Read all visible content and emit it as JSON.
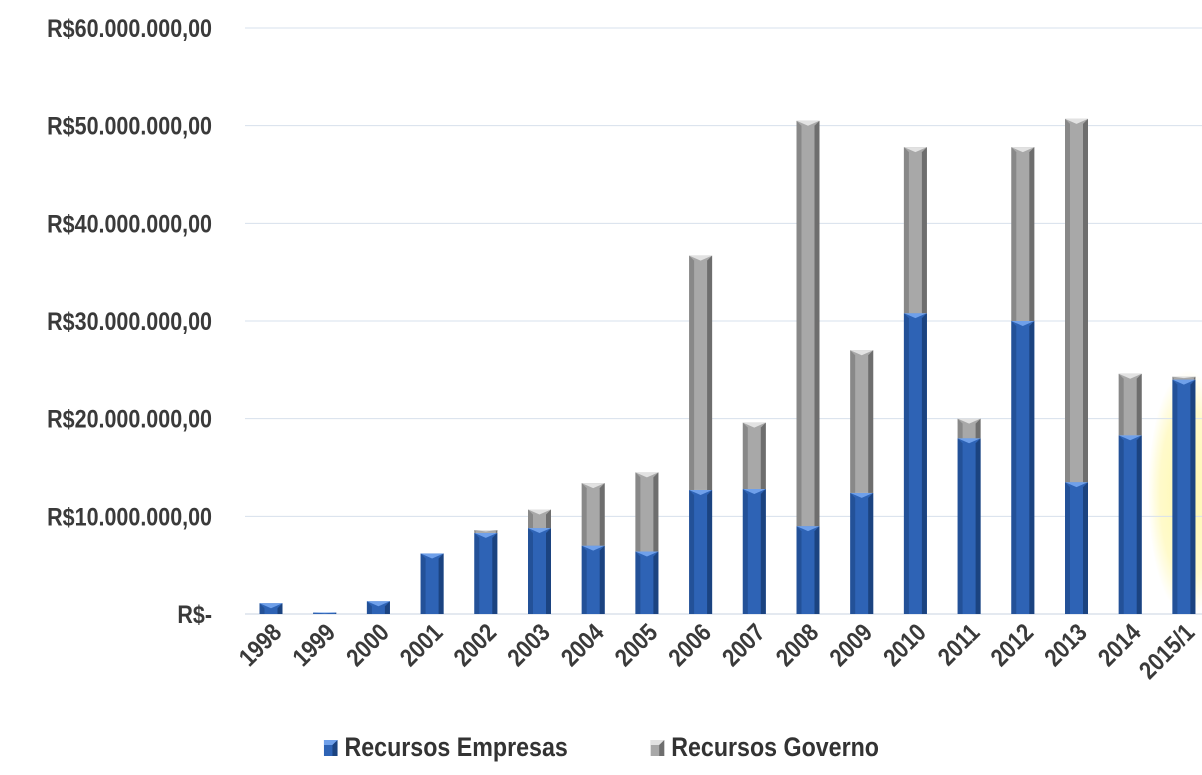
{
  "chart_data": {
    "type": "bar",
    "stacked": true,
    "categories": [
      "1998",
      "1999",
      "2000",
      "2001",
      "2002",
      "2003",
      "2004",
      "2005",
      "2006",
      "2007",
      "2008",
      "2009",
      "2010",
      "2011",
      "2012",
      "2013",
      "2014",
      "2015/1"
    ],
    "series": [
      {
        "name": "Recursos Empresas",
        "color": "#2E63B5",
        "values": [
          1100000,
          150000,
          1300000,
          6200000,
          8300000,
          8800000,
          7000000,
          6400000,
          12700000,
          12800000,
          9000000,
          12400000,
          30800000,
          18000000,
          30000000,
          13500000,
          18300000,
          24000000
        ]
      },
      {
        "name": "Recursos Governo",
        "color": "#A8A8A8",
        "values": [
          0,
          0,
          0,
          0,
          300000,
          1900000,
          6400000,
          8100000,
          24000000,
          6800000,
          41500000,
          14600000,
          17000000,
          2000000,
          17800000,
          37200000,
          6300000,
          300000
        ]
      }
    ],
    "yticks": [
      "R$-",
      "R$10.000.000,00",
      "R$20.000.000,00",
      "R$30.000.000,00",
      "R$40.000.000,00",
      "R$50.000.000,00",
      "R$60.000.000,00"
    ],
    "ylim": [
      0,
      60000000
    ],
    "grid": true,
    "legend": "bottom",
    "highlight_category": "2015/1",
    "highlight_color": "#FFF7A8"
  }
}
